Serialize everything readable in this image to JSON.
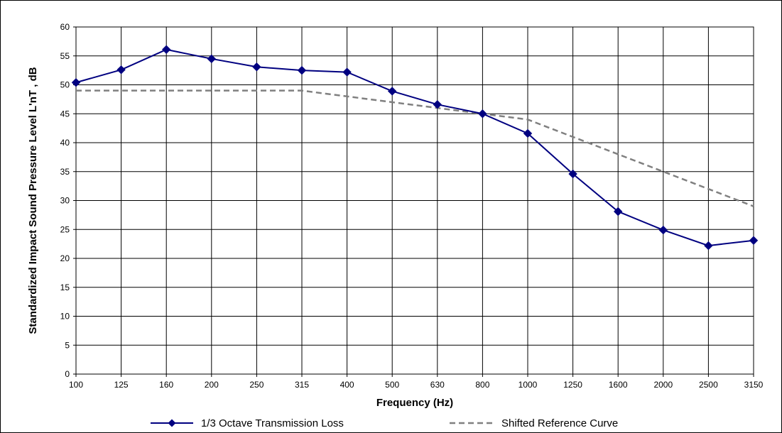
{
  "chart_data": {
    "type": "line",
    "categories": [
      "100",
      "125",
      "160",
      "200",
      "250",
      "315",
      "400",
      "500",
      "630",
      "800",
      "1000",
      "1250",
      "1600",
      "2000",
      "2500",
      "3150"
    ],
    "series": [
      {
        "name": "1/3 Octave Transmission Loss",
        "values": [
          50.4,
          52.6,
          56.1,
          54.5,
          53.1,
          52.5,
          52.2,
          48.9,
          46.6,
          45.0,
          41.6,
          34.6,
          28.1,
          24.9,
          22.2,
          23.1
        ],
        "color": "#000080",
        "style": "solid",
        "marker": "diamond"
      },
      {
        "name": "Shifted Reference Curve",
        "values": [
          49,
          49,
          49,
          49,
          49,
          49,
          48,
          47,
          46,
          45,
          44,
          41,
          38,
          35,
          32,
          29
        ],
        "color": "#808080",
        "style": "dashed",
        "marker": "none"
      }
    ],
    "xlabel": "Frequency (Hz)",
    "ylabel": "Standardized Impact Sound Pressure Level L'nT , dB",
    "ylim": [
      0,
      60
    ],
    "yticks": [
      "0",
      "5",
      "10",
      "15",
      "20",
      "25",
      "30",
      "35",
      "40",
      "45",
      "50",
      "55",
      "60"
    ],
    "grid": true,
    "legend_position": "bottom"
  }
}
